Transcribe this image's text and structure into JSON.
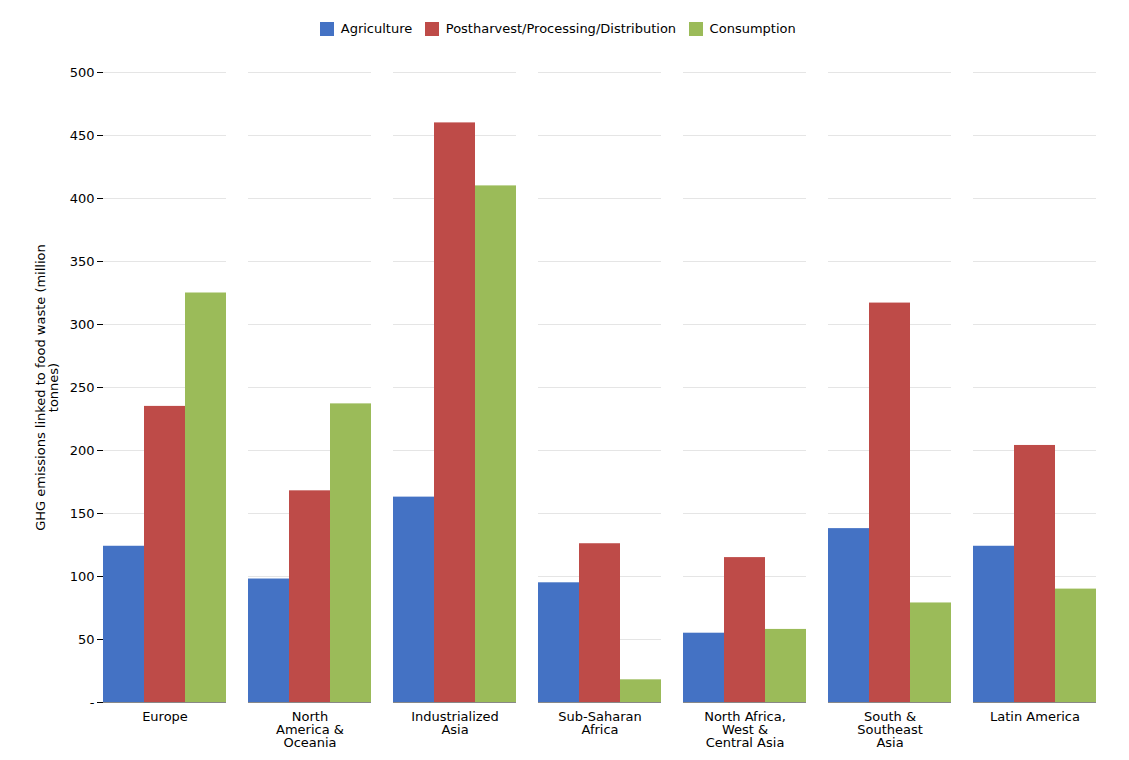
{
  "chart_data": {
    "type": "bar",
    "categories": [
      "Europe",
      "North\nAmerica &\nOceania",
      "Industrialized\nAsia",
      "Sub-Saharan\nAfrica",
      "North Africa,\nWest &\nCentral Asia",
      "South &\nSoutheast\nAsia",
      "Latin America"
    ],
    "series": [
      {
        "name": "Agriculture",
        "color": "#4472C4",
        "values": [
          124,
          98,
          163,
          95,
          55,
          138,
          124
        ]
      },
      {
        "name": "Postharvest/Processing/Distribution",
        "color": "#BE4B48",
        "values": [
          235,
          168,
          460,
          126,
          115,
          317,
          204
        ]
      },
      {
        "name": "Consumption",
        "color": "#9BBB59",
        "values": [
          325,
          237,
          410,
          18,
          58,
          79,
          90
        ]
      }
    ],
    "ylabel": "GHG emissions linked to food waste (million\ntonnes)",
    "ylim": [
      0,
      500
    ],
    "yticks": [
      {
        "value": 0,
        "label": "-"
      },
      50,
      100,
      150,
      200,
      250,
      300,
      350,
      400,
      450,
      500
    ],
    "grid": true,
    "legend": "top"
  }
}
